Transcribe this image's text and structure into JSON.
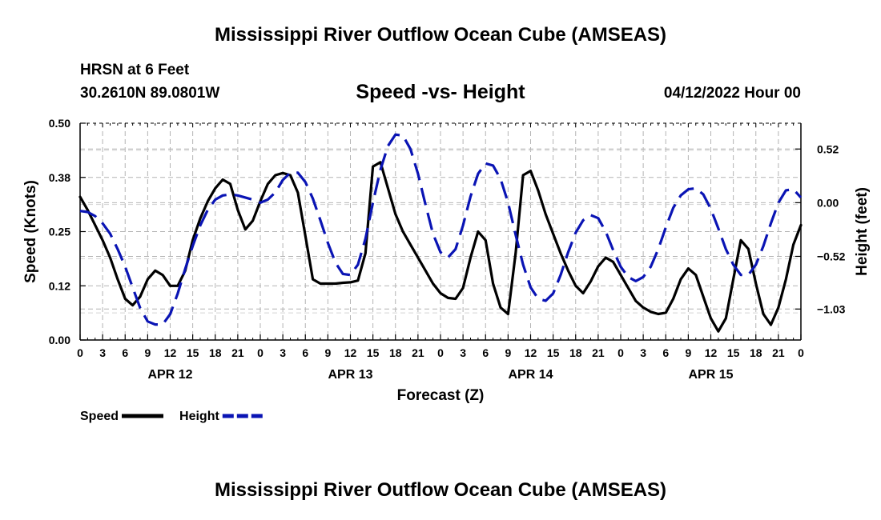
{
  "header": {
    "title": "Mississippi River Outflow Ocean Cube (AMSEAS)",
    "station": "HRSN at 6 Feet",
    "coords": "30.2610N  89.0801W",
    "subtitle": "Speed -vs- Height",
    "datetime": "04/12/2022 Hour 00"
  },
  "footer": {
    "title": "Mississippi River Outflow Ocean Cube (AMSEAS)"
  },
  "chart_data": {
    "type": "line",
    "title": "Speed -vs- Height",
    "xlabel": "Forecast (Z)",
    "ylabel": "Speed (Knots)",
    "y2label": "Height (feet)",
    "xlim": [
      0,
      96
    ],
    "ylim": [
      0,
      0.5
    ],
    "y2lim": [
      -1.33,
      0.77
    ],
    "x_ticks": [
      0,
      3,
      6,
      9,
      12,
      15,
      18,
      21,
      24,
      27,
      30,
      33,
      36,
      39,
      42,
      45,
      48,
      51,
      54,
      57,
      60,
      63,
      66,
      69,
      72,
      75,
      78,
      81,
      84,
      87,
      90,
      93,
      96
    ],
    "x_tick_labels": [
      "0",
      "3",
      "6",
      "9",
      "12",
      "15",
      "18",
      "21",
      "0",
      "3",
      "6",
      "9",
      "12",
      "15",
      "18",
      "21",
      "0",
      "3",
      "6",
      "9",
      "12",
      "15",
      "18",
      "21",
      "0",
      "3",
      "6",
      "9",
      "12",
      "15",
      "18",
      "21",
      "0"
    ],
    "date_labels": [
      {
        "x": 12,
        "label": "APR 12"
      },
      {
        "x": 36,
        "label": "APR 13"
      },
      {
        "x": 60,
        "label": "APR 14"
      },
      {
        "x": 84,
        "label": "APR 15"
      }
    ],
    "y_ticks": [
      0,
      0.125,
      0.25,
      0.375,
      0.5
    ],
    "y_tick_labels": [
      "0.00",
      "0.12",
      "0.25",
      "0.38",
      "0.50"
    ],
    "y2_ticks": [
      0.52,
      0.0,
      -0.52,
      -1.03
    ],
    "y2_tick_labels": [
      "0.52",
      "0.00",
      "−0.52",
      "−1.03"
    ],
    "grid": true,
    "legend_position": "bottom-left",
    "series": [
      {
        "name": "Speed",
        "axis": "left",
        "color": "#000000",
        "dash": "solid",
        "x": [
          0,
          1,
          2,
          3,
          4,
          5,
          6,
          7,
          8,
          9,
          10,
          11,
          12,
          13,
          14,
          15,
          16,
          17,
          18,
          19,
          20,
          21,
          22,
          23,
          24,
          25,
          26,
          27,
          28,
          29,
          30,
          31,
          32,
          33,
          34,
          35,
          36,
          37,
          38,
          39,
          40,
          41,
          42,
          43,
          44,
          45,
          46,
          47,
          48,
          49,
          50,
          51,
          52,
          53,
          54,
          55,
          56,
          57,
          58,
          59,
          60,
          61,
          62,
          63,
          64,
          65,
          66,
          67,
          68,
          69,
          70,
          71,
          72,
          73,
          74,
          75,
          76,
          77,
          78,
          79,
          80,
          81,
          82,
          83,
          84,
          85,
          86,
          87,
          88,
          89,
          90,
          91,
          92,
          93,
          94,
          95,
          96
        ],
        "values": [
          0.33,
          0.3,
          0.265,
          0.23,
          0.19,
          0.14,
          0.095,
          0.08,
          0.1,
          0.14,
          0.16,
          0.15,
          0.125,
          0.125,
          0.16,
          0.23,
          0.28,
          0.32,
          0.35,
          0.37,
          0.36,
          0.3,
          0.255,
          0.275,
          0.32,
          0.36,
          0.38,
          0.385,
          0.38,
          0.34,
          0.24,
          0.14,
          0.13,
          0.13,
          0.13,
          0.132,
          0.133,
          0.137,
          0.2,
          0.4,
          0.41,
          0.35,
          0.29,
          0.25,
          0.22,
          0.19,
          0.16,
          0.13,
          0.108,
          0.097,
          0.095,
          0.12,
          0.19,
          0.25,
          0.23,
          0.13,
          0.075,
          0.06,
          0.2,
          0.38,
          0.39,
          0.345,
          0.29,
          0.245,
          0.2,
          0.16,
          0.125,
          0.108,
          0.135,
          0.17,
          0.19,
          0.18,
          0.15,
          0.12,
          0.09,
          0.075,
          0.065,
          0.06,
          0.063,
          0.095,
          0.14,
          0.165,
          0.15,
          0.1,
          0.05,
          0.02,
          0.05,
          0.14,
          0.23,
          0.21,
          0.13,
          0.06,
          0.035,
          0.075,
          0.14,
          0.22,
          0.265
        ]
      },
      {
        "name": "Height",
        "axis": "right",
        "color": "#0a14b4",
        "dash": "dashed",
        "x": [
          0,
          1,
          2,
          3,
          4,
          5,
          6,
          7,
          8,
          9,
          10,
          11,
          12,
          13,
          14,
          15,
          16,
          17,
          18,
          19,
          20,
          21,
          22,
          23,
          24,
          25,
          26,
          27,
          28,
          29,
          30,
          31,
          32,
          33,
          34,
          35,
          36,
          37,
          38,
          39,
          40,
          41,
          42,
          43,
          44,
          45,
          46,
          47,
          48,
          49,
          50,
          51,
          52,
          53,
          54,
          55,
          56,
          57,
          58,
          59,
          60,
          61,
          62,
          63,
          64,
          65,
          66,
          67,
          68,
          69,
          70,
          71,
          72,
          73,
          74,
          75,
          76,
          77,
          78,
          79,
          80,
          81,
          82,
          83,
          84,
          85,
          86,
          87,
          88,
          89,
          90,
          91,
          92,
          93,
          94,
          95,
          96
        ],
        "values": [
          -0.08,
          -0.09,
          -0.13,
          -0.2,
          -0.3,
          -0.45,
          -0.62,
          -0.82,
          -1.02,
          -1.15,
          -1.18,
          -1.18,
          -1.08,
          -0.88,
          -0.64,
          -0.42,
          -0.22,
          -0.07,
          0.03,
          0.07,
          0.08,
          0.07,
          0.05,
          0.03,
          0.0,
          0.03,
          0.1,
          0.22,
          0.29,
          0.29,
          0.2,
          0.04,
          -0.17,
          -0.39,
          -0.58,
          -0.69,
          -0.7,
          -0.6,
          -0.35,
          0.0,
          0.32,
          0.55,
          0.66,
          0.65,
          0.52,
          0.28,
          -0.02,
          -0.3,
          -0.48,
          -0.53,
          -0.45,
          -0.22,
          0.06,
          0.28,
          0.38,
          0.36,
          0.23,
          0.0,
          -0.31,
          -0.6,
          -0.82,
          -0.93,
          -0.95,
          -0.88,
          -0.7,
          -0.48,
          -0.29,
          -0.17,
          -0.12,
          -0.15,
          -0.28,
          -0.46,
          -0.62,
          -0.72,
          -0.76,
          -0.72,
          -0.62,
          -0.45,
          -0.24,
          -0.05,
          0.07,
          0.13,
          0.14,
          0.08,
          -0.06,
          -0.25,
          -0.45,
          -0.6,
          -0.7,
          -0.7,
          -0.6,
          -0.42,
          -0.2,
          0.0,
          0.12,
          0.13,
          0.05
        ]
      }
    ]
  }
}
